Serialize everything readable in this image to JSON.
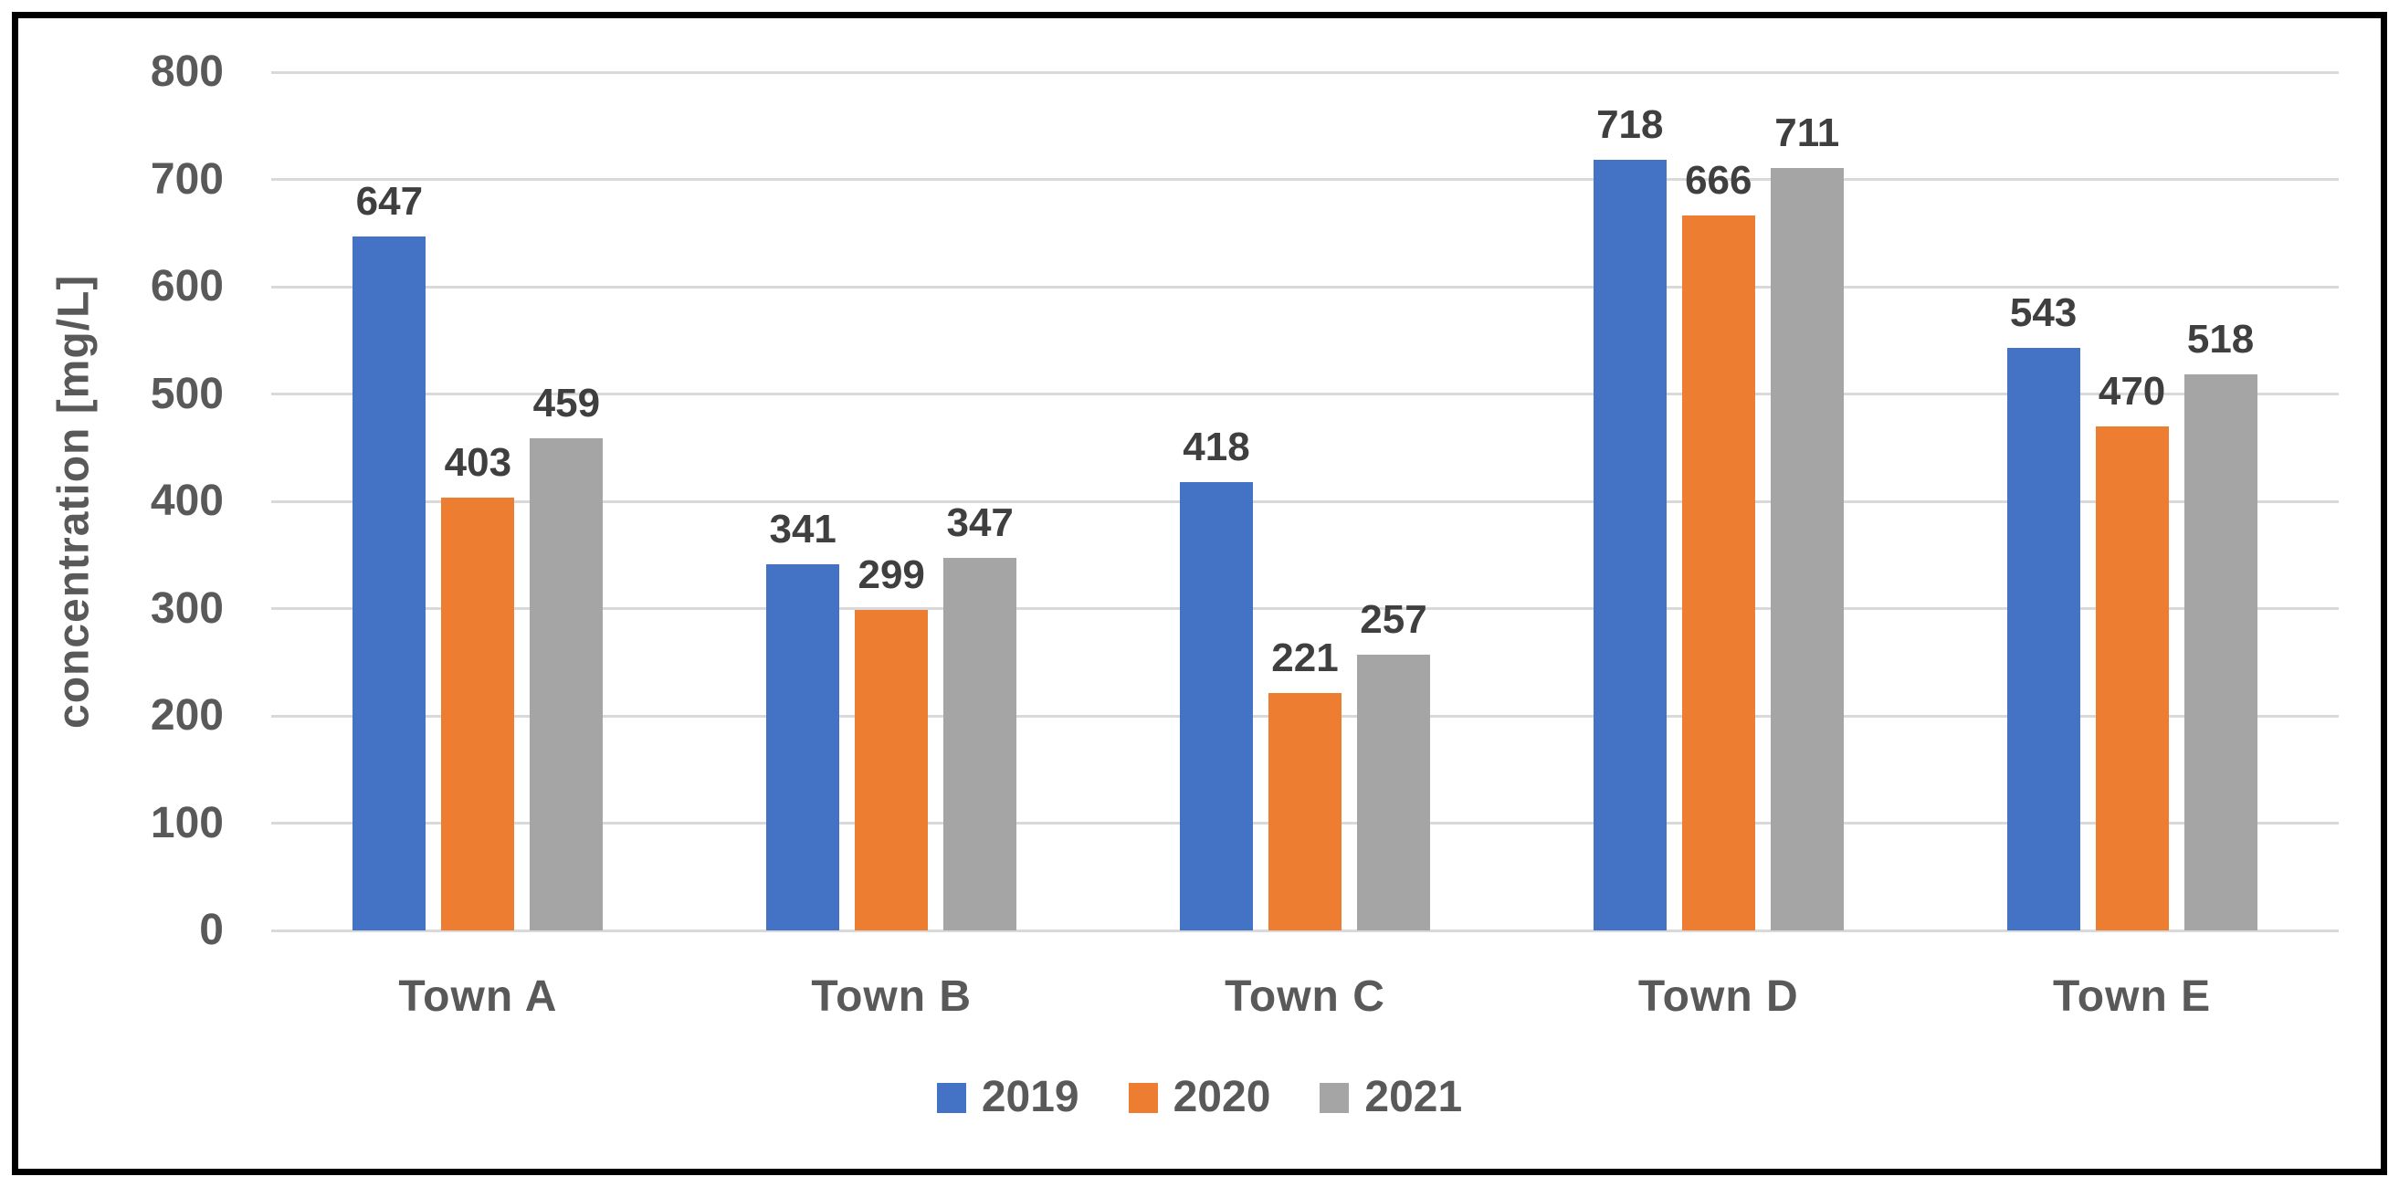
{
  "chart_data": {
    "type": "bar",
    "title": "",
    "xlabel": "",
    "ylabel": "concentration [mg/L]",
    "ylim": [
      0,
      800
    ],
    "ytick_step": 100,
    "yticks": [
      0,
      100,
      200,
      300,
      400,
      500,
      600,
      700,
      800
    ],
    "grid": true,
    "data_labels": true,
    "legend_position": "bottom",
    "categories": [
      "Town A",
      "Town B",
      "Town C",
      "Town D",
      "Town E"
    ],
    "series": [
      {
        "name": "2019",
        "color": "#4472C4",
        "values": [
          647,
          341,
          418,
          718,
          543
        ]
      },
      {
        "name": "2020",
        "color": "#ED7D31",
        "values": [
          403,
          299,
          221,
          666,
          470
        ]
      },
      {
        "name": "2021",
        "color": "#A5A5A5",
        "values": [
          459,
          347,
          257,
          711,
          518
        ]
      }
    ]
  },
  "colors": {
    "grid": "#D9D9D9",
    "axis_line": "#D9D9D9",
    "tick_text": "#595959",
    "category_text": "#595959",
    "legend_text": "#595959",
    "data_label_text": "#3F3F3F",
    "frame_border": "#000000",
    "background": "#FFFFFF"
  }
}
